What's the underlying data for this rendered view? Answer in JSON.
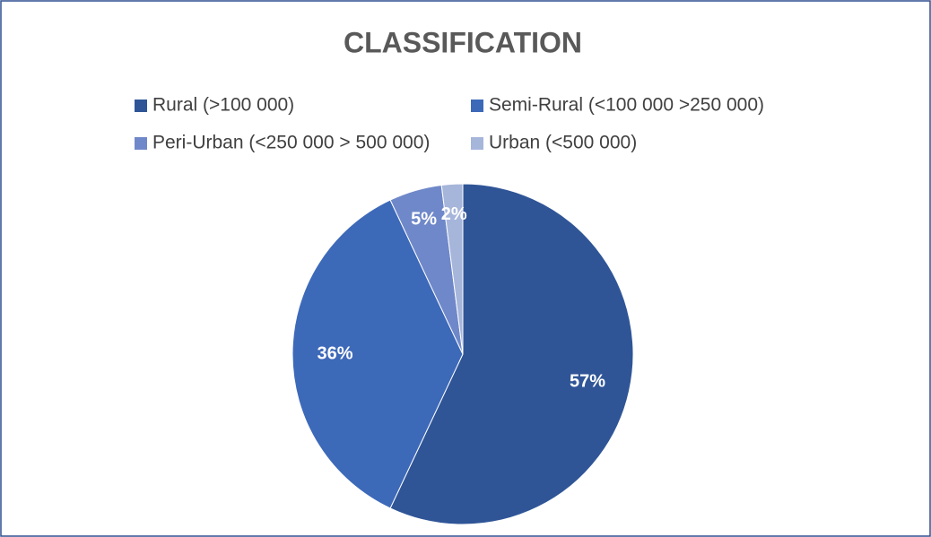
{
  "chart_data": {
    "type": "pie",
    "title": "CLASSIFICATION",
    "categories": [
      "Rural (>100 000)",
      "Semi-Rural (<100 000 >250 000)",
      "Peri-Urban (<250 000 > 500 000)",
      "Urban (<500 000)"
    ],
    "values": [
      57,
      36,
      5,
      2
    ],
    "value_labels": [
      "57%",
      "36%",
      "5%",
      "2%"
    ],
    "colors": [
      "#2f5597",
      "#3d69b9",
      "#6f88c9",
      "#a6b5da"
    ],
    "legend": "top"
  }
}
